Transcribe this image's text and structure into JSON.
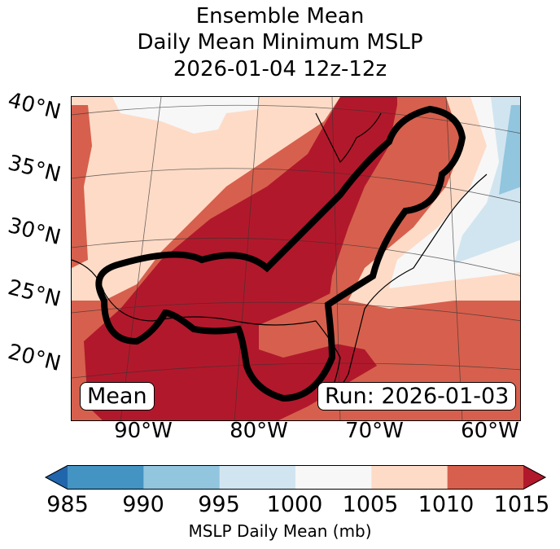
{
  "title": {
    "line1": "Ensemble Mean",
    "line2": "Daily Mean Minimum MSLP",
    "line3": "2026-01-04 12z-12z"
  },
  "map": {
    "lat_labels": [
      "40°N",
      "35°N",
      "30°N",
      "25°N",
      "20°N"
    ],
    "lon_labels": [
      "90°W",
      "80°W",
      "70°W",
      "60°W"
    ],
    "annotation_left": "Mean",
    "annotation_right": "Run: 2026-01-03",
    "contour_color": "#000000",
    "region": "Eastern United States, Gulf of Mexico, western Atlantic"
  },
  "colorbar": {
    "label": "MSLP Daily Mean (mb)",
    "ticks": [
      "985",
      "990",
      "995",
      "1000",
      "1005",
      "1010",
      "1015"
    ],
    "bins": [
      {
        "range": "<985",
        "color": "#2166ac"
      },
      {
        "range": "985-990",
        "color": "#4393c3"
      },
      {
        "range": "990-995",
        "color": "#92c5de"
      },
      {
        "range": "995-1000",
        "color": "#d1e5f0"
      },
      {
        "range": "1000-1005",
        "color": "#f7f7f7"
      },
      {
        "range": "1005-1010",
        "color": "#fddbc7"
      },
      {
        "range": "1010-1015",
        "color": "#d6604d"
      },
      {
        "range": ">1015",
        "color": "#b2182b"
      }
    ],
    "extend": "both"
  }
}
